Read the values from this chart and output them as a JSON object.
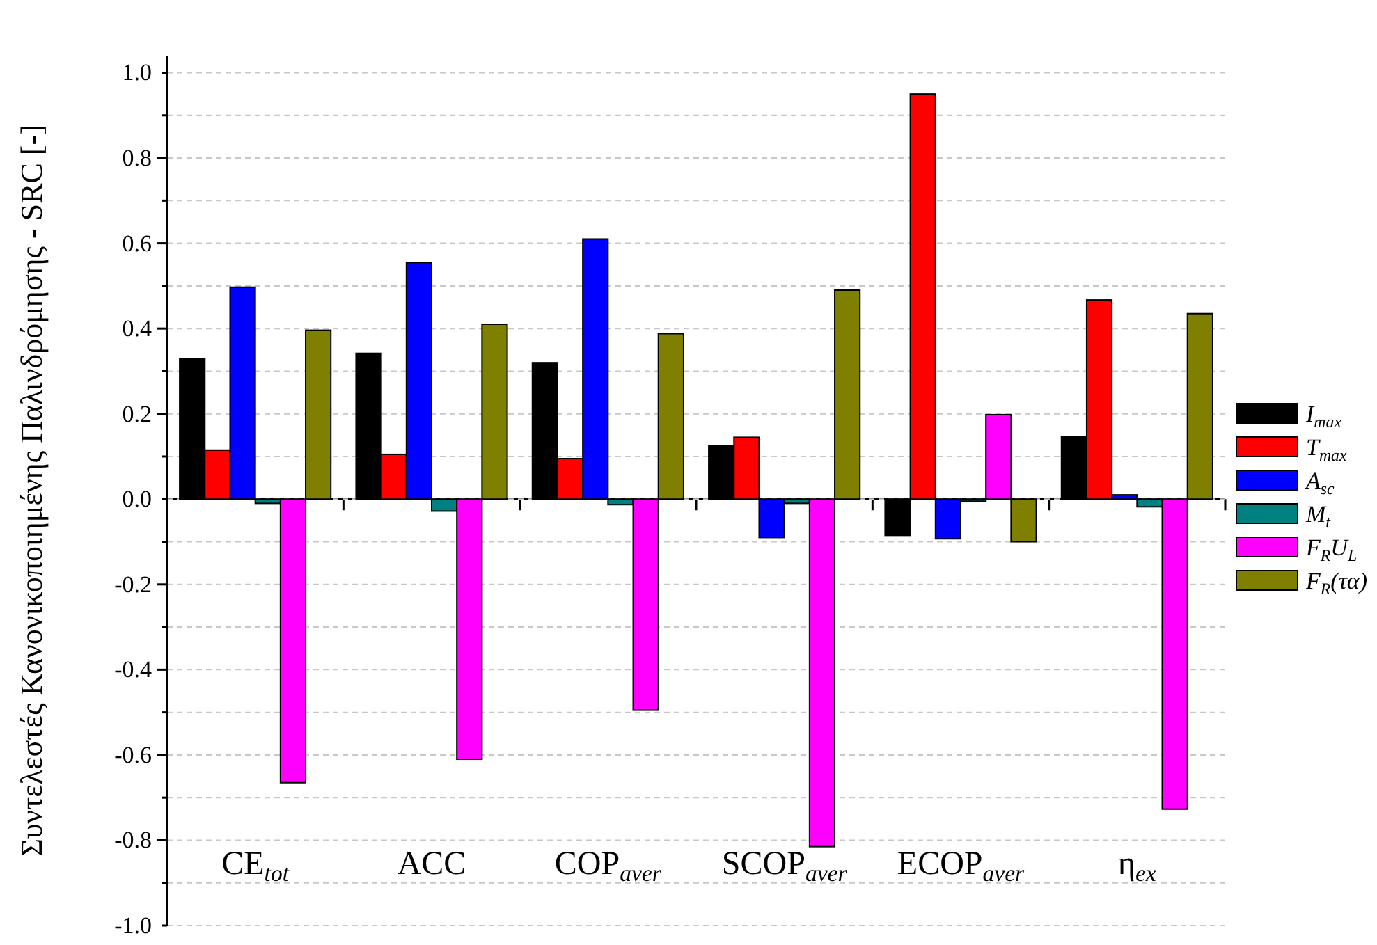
{
  "chart_data": {
    "type": "bar",
    "ylabel": "Συντελεστές Κανονικοποιημένης Παλινδρόμησης - SRC [-]",
    "categories": [
      "CE$_{tot}$",
      "ACC",
      "COP$_{aver}$",
      "SCOP$_{aver}$",
      "ECOP$_{aver}$",
      "η$_{ex}$"
    ],
    "series": [
      {
        "name": "I$_{max}$",
        "color": "#000000",
        "values": [
          0.33,
          0.342,
          0.32,
          0.125,
          -0.085,
          0.147
        ]
      },
      {
        "name": "T$_{max}$",
        "color": "#ff0000",
        "values": [
          0.115,
          0.105,
          0.095,
          0.145,
          0.95,
          0.467
        ]
      },
      {
        "name": "A$_{sc}$",
        "color": "#0000ff",
        "values": [
          0.497,
          0.555,
          0.61,
          -0.09,
          -0.093,
          0.01
        ]
      },
      {
        "name": "M$_{t}$",
        "color": "#008080",
        "values": [
          -0.01,
          -0.028,
          -0.013,
          -0.01,
          -0.005,
          -0.018
        ]
      },
      {
        "name": "F$_{R}$U$_{L}$",
        "color": "#ff00ff",
        "values": [
          -0.665,
          -0.61,
          -0.495,
          -0.815,
          0.198,
          -0.727
        ]
      },
      {
        "name": "F$_{R}$(τα)",
        "color": "#808000",
        "values": [
          0.396,
          0.41,
          0.388,
          0.49,
          -0.1,
          0.435
        ]
      }
    ],
    "ylim": [
      -1,
      1.04
    ],
    "yticks": [
      {
        "value": -1,
        "label": "-1.0"
      },
      {
        "value": -0.9,
        "label": null
      },
      -0.8,
      {
        "value": -0.7,
        "label": null
      },
      -0.6,
      {
        "value": -0.5,
        "label": null
      },
      -0.4,
      {
        "value": -0.3,
        "label": null
      },
      -0.2,
      {
        "value": -0.1,
        "label": null
      },
      {
        "value": 0,
        "label": "0.0"
      },
      {
        "value": 0.1,
        "label": null
      },
      0.2,
      {
        "value": 0.3,
        "label": null
      },
      0.4,
      {
        "value": 0.5,
        "label": null
      },
      0.6,
      {
        "value": 0.7,
        "label": null
      },
      0.8,
      {
        "value": 0.9,
        "label": null
      },
      {
        "value": 1,
        "label": "1.0"
      }
    ],
    "grid": "y",
    "legend": "right"
  }
}
